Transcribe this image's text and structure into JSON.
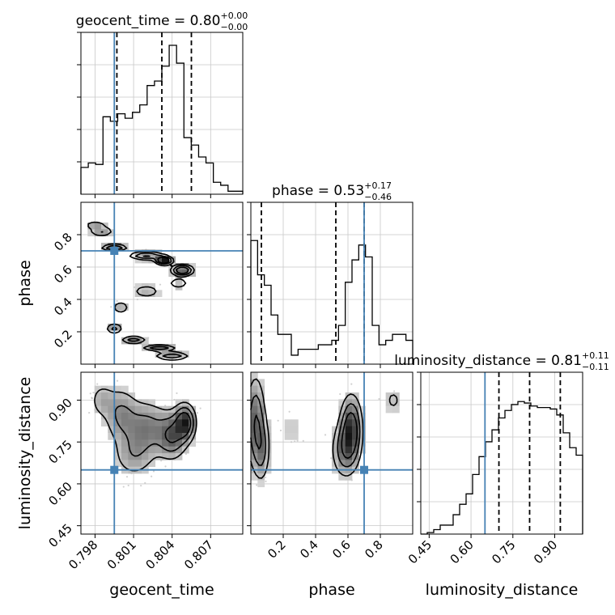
{
  "chart_data": {
    "type": "corner",
    "parameters": [
      {
        "name": "geocent_time",
        "axis_label": "geocent_time",
        "title_name": "geocent_time = ",
        "title_value": "0.80",
        "title_plus": "+0.00",
        "title_minus": "−0.00",
        "range": [
          0.7969,
          0.8095
        ],
        "ticks": [
          0.798,
          0.801,
          0.804,
          0.807
        ],
        "tick_labels": [
          "0.798",
          "0.801",
          "0.804",
          "0.807"
        ],
        "truth": 0.7995,
        "quantiles": [
          0.7997,
          0.8032,
          0.8055
        ],
        "hist": [
          0.18,
          0.21,
          0.2,
          0.52,
          0.49,
          0.54,
          0.51,
          0.55,
          0.6,
          0.73,
          0.76,
          0.86,
          1.0,
          0.88,
          0.38,
          0.33,
          0.25,
          0.21,
          0.08,
          0.06,
          0.02,
          0.02
        ]
      },
      {
        "name": "phase",
        "axis_label": "phase",
        "title_name": "phase = ",
        "title_value": "0.53",
        "title_plus": "+0.17",
        "title_minus": "−0.46",
        "range": [
          0.0,
          1.0
        ],
        "ticks": [
          0.2,
          0.4,
          0.6,
          0.8
        ],
        "tick_labels": [
          "0.2",
          "0.4",
          "0.6",
          "0.8"
        ],
        "truth": 0.7,
        "quantiles": [
          0.065,
          0.525,
          0.7
        ],
        "hist": [
          0.83,
          0.6,
          0.53,
          0.33,
          0.2,
          0.2,
          0.06,
          0.1,
          0.1,
          0.1,
          0.13,
          0.13,
          0.16,
          0.26,
          0.55,
          0.7,
          0.8,
          0.72,
          0.26,
          0.13,
          0.16,
          0.2,
          0.2,
          0.16
        ]
      },
      {
        "name": "luminosity_distance",
        "axis_label": "luminosity_distance",
        "title_name": "luminosity_distance = ",
        "title_value": "0.81",
        "title_plus": "+0.11",
        "title_minus": "−0.11",
        "range": [
          0.42,
          1.0
        ],
        "ticks": [
          0.45,
          0.6,
          0.75,
          0.9
        ],
        "tick_labels": [
          "0.45",
          "0.60",
          "0.75",
          "0.90"
        ],
        "truth": 0.65,
        "quantiles": [
          0.7,
          0.81,
          0.92
        ],
        "hist": [
          0.0,
          0.01,
          0.03,
          0.06,
          0.06,
          0.13,
          0.2,
          0.27,
          0.4,
          0.52,
          0.62,
          0.7,
          0.78,
          0.83,
          0.87,
          0.89,
          0.88,
          0.86,
          0.85,
          0.85,
          0.84,
          0.8,
          0.68,
          0.58,
          0.53
        ]
      }
    ],
    "truth_color": "#4682b4",
    "hist_color": "#000000",
    "quantile_style": "dashed",
    "grid": true,
    "density_blobs": {
      "geocent_time_vs_phase": [
        {
          "x": 0.80335,
          "y": 0.64,
          "sx": 0.0004,
          "sy": 0.015,
          "w": 1.0
        },
        {
          "x": 0.8048,
          "y": 0.58,
          "sx": 0.0005,
          "sy": 0.02,
          "w": 0.9
        },
        {
          "x": 0.802,
          "y": 0.67,
          "sx": 0.0008,
          "sy": 0.015,
          "w": 0.6
        },
        {
          "x": 0.7995,
          "y": 0.72,
          "sx": 0.0006,
          "sy": 0.012,
          "w": 0.6
        },
        {
          "x": 0.803,
          "y": 0.1,
          "sx": 0.0008,
          "sy": 0.012,
          "w": 0.5
        },
        {
          "x": 0.804,
          "y": 0.05,
          "sx": 0.0008,
          "sy": 0.015,
          "w": 0.5
        },
        {
          "x": 0.801,
          "y": 0.15,
          "sx": 0.0006,
          "sy": 0.015,
          "w": 0.45
        },
        {
          "x": 0.7995,
          "y": 0.22,
          "sx": 0.0004,
          "sy": 0.02,
          "w": 0.4
        },
        {
          "x": 0.8,
          "y": 0.35,
          "sx": 0.0005,
          "sy": 0.03,
          "w": 0.25
        },
        {
          "x": 0.802,
          "y": 0.45,
          "sx": 0.0008,
          "sy": 0.03,
          "w": 0.25
        },
        {
          "x": 0.8045,
          "y": 0.5,
          "sx": 0.0005,
          "sy": 0.02,
          "w": 0.3
        },
        {
          "x": 0.7985,
          "y": 0.82,
          "sx": 0.0006,
          "sy": 0.02,
          "w": 0.35
        },
        {
          "x": 0.798,
          "y": 0.86,
          "sx": 0.0005,
          "sy": 0.015,
          "w": 0.3
        }
      ],
      "geocent_time_vs_luminosity_distance": [
        {
          "x": 0.805,
          "y": 0.82,
          "sx": 0.0005,
          "sy": 0.04,
          "w": 1.0
        },
        {
          "x": 0.804,
          "y": 0.77,
          "sx": 0.0007,
          "sy": 0.05,
          "w": 0.7
        },
        {
          "x": 0.802,
          "y": 0.8,
          "sx": 0.0011,
          "sy": 0.06,
          "w": 0.55
        },
        {
          "x": 0.8,
          "y": 0.85,
          "sx": 0.0008,
          "sy": 0.06,
          "w": 0.45
        },
        {
          "x": 0.801,
          "y": 0.7,
          "sx": 0.001,
          "sy": 0.05,
          "w": 0.35
        },
        {
          "x": 0.7985,
          "y": 0.9,
          "sx": 0.0006,
          "sy": 0.04,
          "w": 0.3
        }
      ],
      "phase_vs_luminosity_distance": [
        {
          "x": 0.62,
          "y": 0.8,
          "sx": 0.04,
          "sy": 0.07,
          "w": 1.0
        },
        {
          "x": 0.58,
          "y": 0.72,
          "sx": 0.05,
          "sy": 0.06,
          "w": 0.6
        },
        {
          "x": 0.03,
          "y": 0.82,
          "sx": 0.035,
          "sy": 0.1,
          "w": 0.75
        },
        {
          "x": 0.07,
          "y": 0.72,
          "sx": 0.03,
          "sy": 0.07,
          "w": 0.45
        },
        {
          "x": 0.25,
          "y": 0.8,
          "sx": 0.07,
          "sy": 0.07,
          "w": 0.18
        },
        {
          "x": 0.88,
          "y": 0.9,
          "sx": 0.05,
          "sy": 0.04,
          "w": 0.25
        }
      ]
    }
  }
}
